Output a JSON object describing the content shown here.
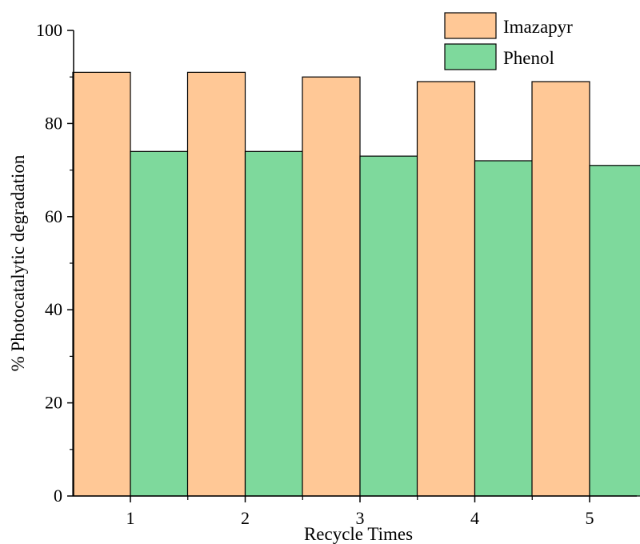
{
  "chart_data": {
    "type": "bar",
    "title": "",
    "xlabel": "Recycle Times",
    "ylabel": "% Photocatalytic degradation",
    "categories": [
      "1",
      "2",
      "3",
      "4",
      "5"
    ],
    "series": [
      {
        "name": "Imazapyr",
        "values": [
          91,
          91,
          90,
          89,
          89
        ],
        "color": "#FFC896"
      },
      {
        "name": "Phenol",
        "values": [
          74,
          74,
          73,
          72,
          71
        ],
        "color": "#7ED99C"
      }
    ],
    "ylim": [
      0,
      100
    ],
    "yticks": [
      "0",
      "20",
      "40",
      "60",
      "80",
      "100"
    ],
    "grid": false,
    "legend_position": "top-right"
  }
}
